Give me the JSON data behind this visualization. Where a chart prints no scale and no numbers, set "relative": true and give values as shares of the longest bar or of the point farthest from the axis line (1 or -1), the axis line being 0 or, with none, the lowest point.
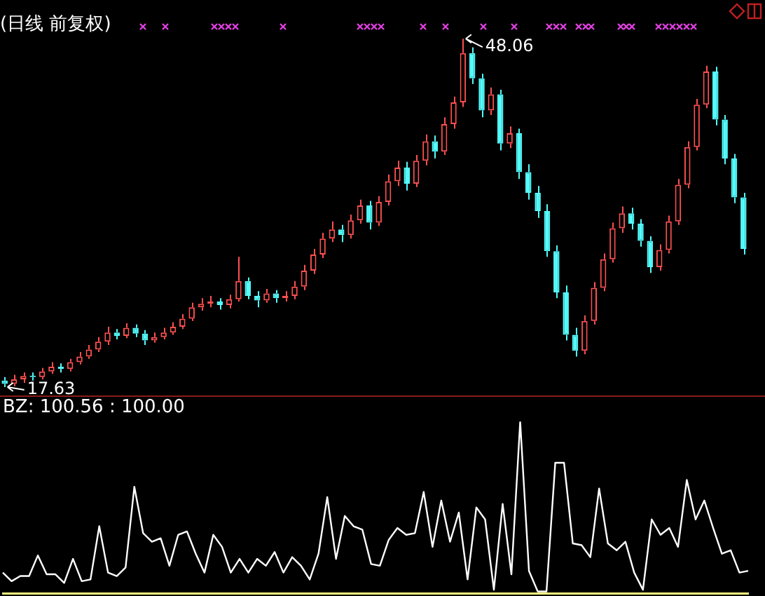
{
  "chart_data": [
    {
      "type": "candlestick",
      "title": "(日线 前复权)",
      "categories": [
        null,
        null,
        null,
        null,
        null,
        null,
        null,
        null,
        null,
        null,
        null,
        null,
        null,
        null,
        null,
        null,
        null,
        null,
        null,
        null,
        null,
        null,
        null,
        null,
        null,
        null,
        null,
        null,
        null,
        null,
        null,
        null,
        null,
        null,
        null,
        null,
        null,
        null,
        null,
        null,
        null,
        null,
        null,
        null,
        null,
        null,
        null,
        null,
        null,
        null,
        null,
        null,
        null,
        null,
        null,
        null,
        null,
        null,
        null,
        null,
        null,
        null,
        null,
        null,
        null,
        null,
        null,
        null,
        null,
        null,
        null,
        null,
        null,
        null,
        null,
        null,
        null,
        null,
        null,
        null
      ],
      "ohlc": [
        [
          18.2,
          18.5,
          17.63,
          17.9
        ],
        [
          17.9,
          18.7,
          17.7,
          18.3
        ],
        [
          18.3,
          18.9,
          18.0,
          18.6
        ],
        [
          18.6,
          18.9,
          18.2,
          18.5
        ],
        [
          18.5,
          19.3,
          18.3,
          19.0
        ],
        [
          19.0,
          19.8,
          18.8,
          19.4
        ],
        [
          19.4,
          19.7,
          18.9,
          19.2
        ],
        [
          19.2,
          20.1,
          19.0,
          19.8
        ],
        [
          19.8,
          20.7,
          19.6,
          20.3
        ],
        [
          20.3,
          21.3,
          20.1,
          20.9
        ],
        [
          20.9,
          22.0,
          20.7,
          21.6
        ],
        [
          21.6,
          22.9,
          21.3,
          22.4
        ],
        [
          22.4,
          22.7,
          21.8,
          22.1
        ],
        [
          22.1,
          23.2,
          21.9,
          22.8
        ],
        [
          22.8,
          23.1,
          22.0,
          22.3
        ],
        [
          22.3,
          22.6,
          21.3,
          21.7
        ],
        [
          21.7,
          22.4,
          21.5,
          22.0
        ],
        [
          22.0,
          22.8,
          21.8,
          22.4
        ],
        [
          22.4,
          23.3,
          22.2,
          22.9
        ],
        [
          22.9,
          24.0,
          22.7,
          23.6
        ],
        [
          23.6,
          25.0,
          23.4,
          24.6
        ],
        [
          24.6,
          25.4,
          24.3,
          24.9
        ],
        [
          24.9,
          25.6,
          24.6,
          25.1
        ],
        [
          25.1,
          25.4,
          24.4,
          24.8
        ],
        [
          24.8,
          25.7,
          24.5,
          25.3
        ],
        [
          25.3,
          29.0,
          25.1,
          26.9
        ],
        [
          26.9,
          27.2,
          25.3,
          25.6
        ],
        [
          25.6,
          26.0,
          24.6,
          25.2
        ],
        [
          25.2,
          26.2,
          25.0,
          25.8
        ],
        [
          25.8,
          26.1,
          25.0,
          25.4
        ],
        [
          25.4,
          26.0,
          25.1,
          25.6
        ],
        [
          25.6,
          26.9,
          25.3,
          26.4
        ],
        [
          26.4,
          28.3,
          26.1,
          27.8
        ],
        [
          27.8,
          29.7,
          27.5,
          29.2
        ],
        [
          29.2,
          31.1,
          28.9,
          30.6
        ],
        [
          30.6,
          32.1,
          30.3,
          31.4
        ],
        [
          31.4,
          31.8,
          30.3,
          30.9
        ],
        [
          30.9,
          32.7,
          30.6,
          32.2
        ],
        [
          32.2,
          34.0,
          31.9,
          33.5
        ],
        [
          33.5,
          33.9,
          31.4,
          32.0
        ],
        [
          32.0,
          34.3,
          31.7,
          33.8
        ],
        [
          33.8,
          36.2,
          33.5,
          35.6
        ],
        [
          35.6,
          37.4,
          35.2,
          36.8
        ],
        [
          36.8,
          37.3,
          34.8,
          35.4
        ],
        [
          35.4,
          37.9,
          35.1,
          37.4
        ],
        [
          37.4,
          39.7,
          37.0,
          39.1
        ],
        [
          39.1,
          39.6,
          37.6,
          38.2
        ],
        [
          38.2,
          41.2,
          37.9,
          40.6
        ],
        [
          40.6,
          43.0,
          40.2,
          42.5
        ],
        [
          42.5,
          48.06,
          42.1,
          46.8
        ],
        [
          46.8,
          47.3,
          44.1,
          44.6
        ],
        [
          44.6,
          45.0,
          41.2,
          41.8
        ],
        [
          41.8,
          43.8,
          41.4,
          43.2
        ],
        [
          43.2,
          43.6,
          38.3,
          38.9
        ],
        [
          38.9,
          40.4,
          38.5,
          39.8
        ],
        [
          39.8,
          40.2,
          35.8,
          36.4
        ],
        [
          36.4,
          37.1,
          34.0,
          34.6
        ],
        [
          34.6,
          35.2,
          32.4,
          33.0
        ],
        [
          33.0,
          33.6,
          29.0,
          29.5
        ],
        [
          29.5,
          30.0,
          25.4,
          25.9
        ],
        [
          25.9,
          26.5,
          21.7,
          22.2
        ],
        [
          22.2,
          22.8,
          20.3,
          20.8
        ],
        [
          20.8,
          23.9,
          20.5,
          23.4
        ],
        [
          23.4,
          26.8,
          23.1,
          26.3
        ],
        [
          26.3,
          29.3,
          26.0,
          28.8
        ],
        [
          28.8,
          32.0,
          28.5,
          31.5
        ],
        [
          31.5,
          33.4,
          31.1,
          32.8
        ],
        [
          32.8,
          33.3,
          31.4,
          31.9
        ],
        [
          31.9,
          32.3,
          29.9,
          30.4
        ],
        [
          30.4,
          30.8,
          27.6,
          28.1
        ],
        [
          28.1,
          30.1,
          27.8,
          29.6
        ],
        [
          29.6,
          32.6,
          29.3,
          32.1
        ],
        [
          32.1,
          35.8,
          31.8,
          35.3
        ],
        [
          35.3,
          39.1,
          35.0,
          38.6
        ],
        [
          38.6,
          42.8,
          38.3,
          42.3
        ],
        [
          42.3,
          45.7,
          42.0,
          45.2
        ],
        [
          45.2,
          45.6,
          40.5,
          41.0
        ],
        [
          41.0,
          41.4,
          37.1,
          37.6
        ],
        [
          37.6,
          38.0,
          33.7,
          34.2
        ],
        [
          34.2,
          34.6,
          29.2,
          29.7
        ]
      ],
      "annotations": [
        "48.06",
        "17.63"
      ]
    },
    {
      "type": "line",
      "title": "BZ: 100.56 : 100.00",
      "relative": true,
      "categories": [
        null,
        null,
        null,
        null,
        null,
        null,
        null,
        null,
        null,
        null,
        null,
        null,
        null,
        null,
        null,
        null,
        null,
        null,
        null,
        null,
        null,
        null,
        null,
        null,
        null,
        null,
        null,
        null,
        null,
        null,
        null,
        null,
        null,
        null,
        null,
        null,
        null,
        null,
        null,
        null,
        null,
        null,
        null,
        null,
        null,
        null,
        null,
        null,
        null,
        null,
        null,
        null,
        null,
        null,
        null,
        null,
        null,
        null,
        null,
        null,
        null,
        null,
        null,
        null,
        null,
        null,
        null,
        null,
        null,
        null,
        null,
        null,
        null,
        null,
        null,
        null,
        null,
        null,
        null,
        null,
        null,
        null,
        null,
        null,
        null,
        null
      ],
      "series": [
        {
          "color": "#ffffff",
          "values": [
            0.12,
            0.07,
            0.1,
            0.1,
            0.22,
            0.11,
            0.11,
            0.06,
            0.2,
            0.07,
            0.08,
            0.39,
            0.12,
            0.1,
            0.15,
            0.62,
            0.35,
            0.3,
            0.32,
            0.16,
            0.34,
            0.36,
            0.23,
            0.12,
            0.34,
            0.27,
            0.12,
            0.2,
            0.12,
            0.2,
            0.16,
            0.24,
            0.12,
            0.21,
            0.16,
            0.08,
            0.23,
            0.56,
            0.2,
            0.45,
            0.39,
            0.37,
            0.17,
            0.16,
            0.31,
            0.38,
            0.34,
            0.35,
            0.59,
            0.27,
            0.54,
            0.3,
            0.47,
            0.08,
            0.5,
            0.43,
            0.02,
            0.52,
            0.11,
            1,
            0.13,
            0.01,
            0.01,
            0.76,
            0.76,
            0.29,
            0.28,
            0.21,
            0.61,
            0.29,
            0.25,
            0.3,
            0.12,
            0.02,
            0.43,
            0.34,
            0.38,
            0.27,
            0.66,
            0.43,
            0.54,
            0.38,
            0.23,
            0.25,
            0.12,
            0.13
          ]
        }
      ]
    }
  ]
}
